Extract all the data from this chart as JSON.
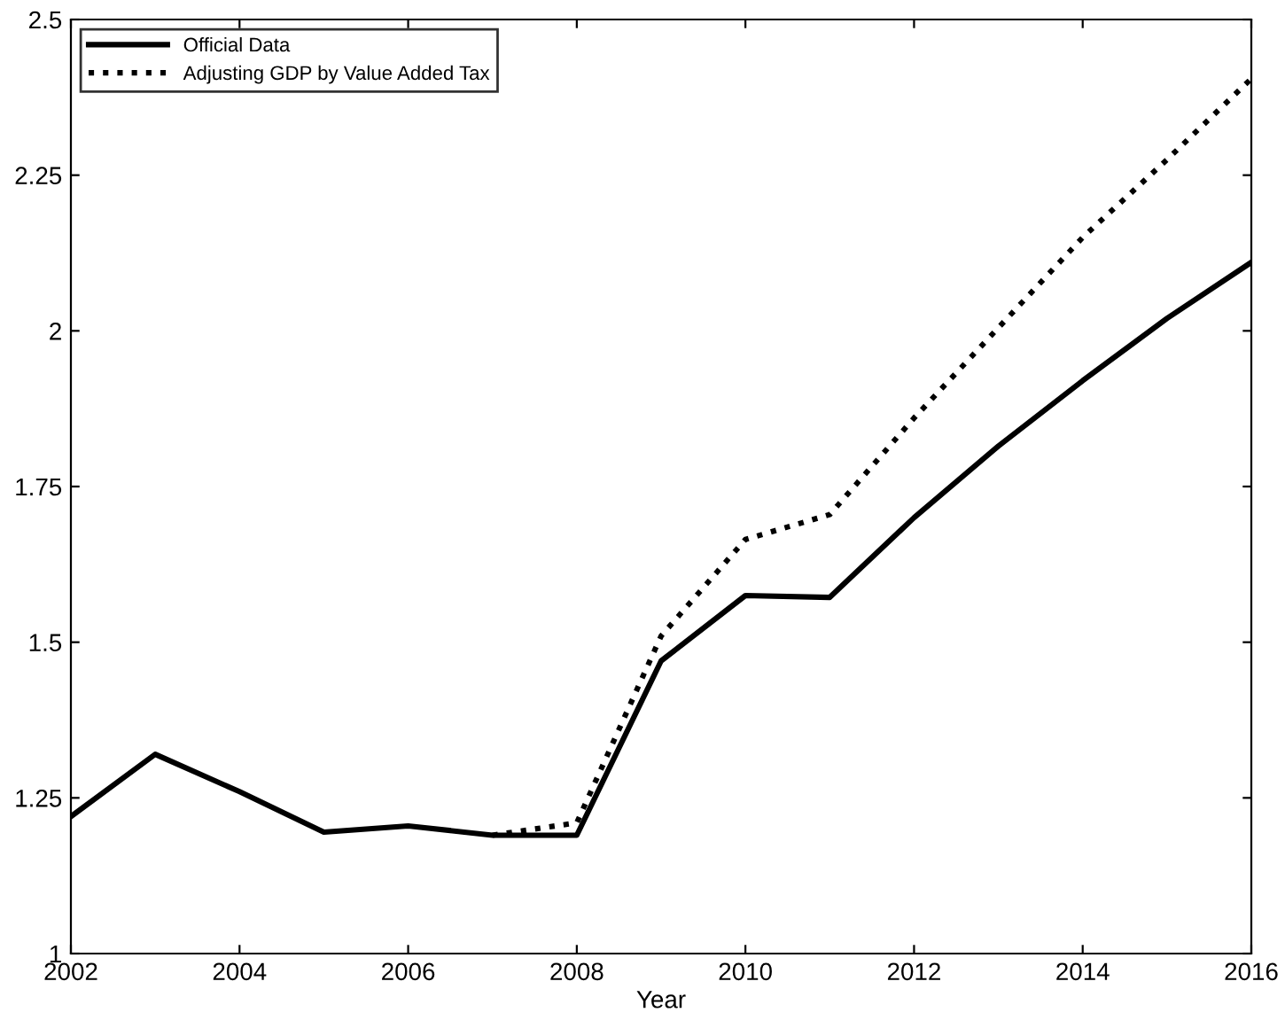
{
  "chart_data": {
    "type": "line",
    "xlabel": "Year",
    "x": [
      2002,
      2003,
      2004,
      2005,
      2006,
      2007,
      2008,
      2009,
      2010,
      2011,
      2012,
      2013,
      2014,
      2015,
      2016
    ],
    "series": [
      {
        "name": "Official Data",
        "color": "#000000",
        "line_style": "solid",
        "values": [
          1.22,
          1.32,
          1.26,
          1.195,
          1.205,
          1.19,
          1.19,
          1.47,
          1.575,
          1.572,
          1.7,
          1.815,
          1.92,
          2.02,
          2.11
        ]
      },
      {
        "name": "Adjusting GDP by Value Added Tax",
        "color": "#000000",
        "line_style": "dotted",
        "values": [
          null,
          null,
          null,
          null,
          null,
          1.19,
          1.21,
          1.51,
          1.665,
          1.705,
          1.86,
          2.005,
          2.15,
          2.275,
          2.405
        ]
      }
    ],
    "xlim": [
      2002,
      2016
    ],
    "xticks": [
      2002,
      2004,
      2006,
      2008,
      2010,
      2012,
      2014,
      2016
    ],
    "ylim": [
      1,
      2.5
    ],
    "yticks": [
      1,
      1.25,
      1.5,
      1.75,
      2,
      2.25,
      2.5
    ],
    "grid": false,
    "legend": "top left",
    "marker": "none"
  }
}
